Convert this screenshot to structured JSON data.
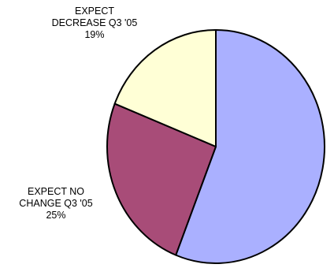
{
  "chart_data": {
    "type": "pie",
    "slices": [
      {
        "label": "",
        "value": 56,
        "value_label": "",
        "color": "#aab0ff"
      },
      {
        "label": "EXPECT NO CHANGE Q3 '05",
        "label_lines": [
          "EXPECT NO",
          "CHANGE Q3 '05"
        ],
        "value": 25,
        "value_label": "25%",
        "color": "#a84c78"
      },
      {
        "label": "EXPECT DECREASE Q3 '05",
        "label_lines": [
          "EXPECT",
          "DECREASE Q3 '05"
        ],
        "value": 19,
        "value_label": "19%",
        "color": "#ffffd6"
      }
    ],
    "start_angle": "12 o'clock",
    "direction": "clockwise",
    "edge_color": "#000000",
    "legend": "none"
  }
}
